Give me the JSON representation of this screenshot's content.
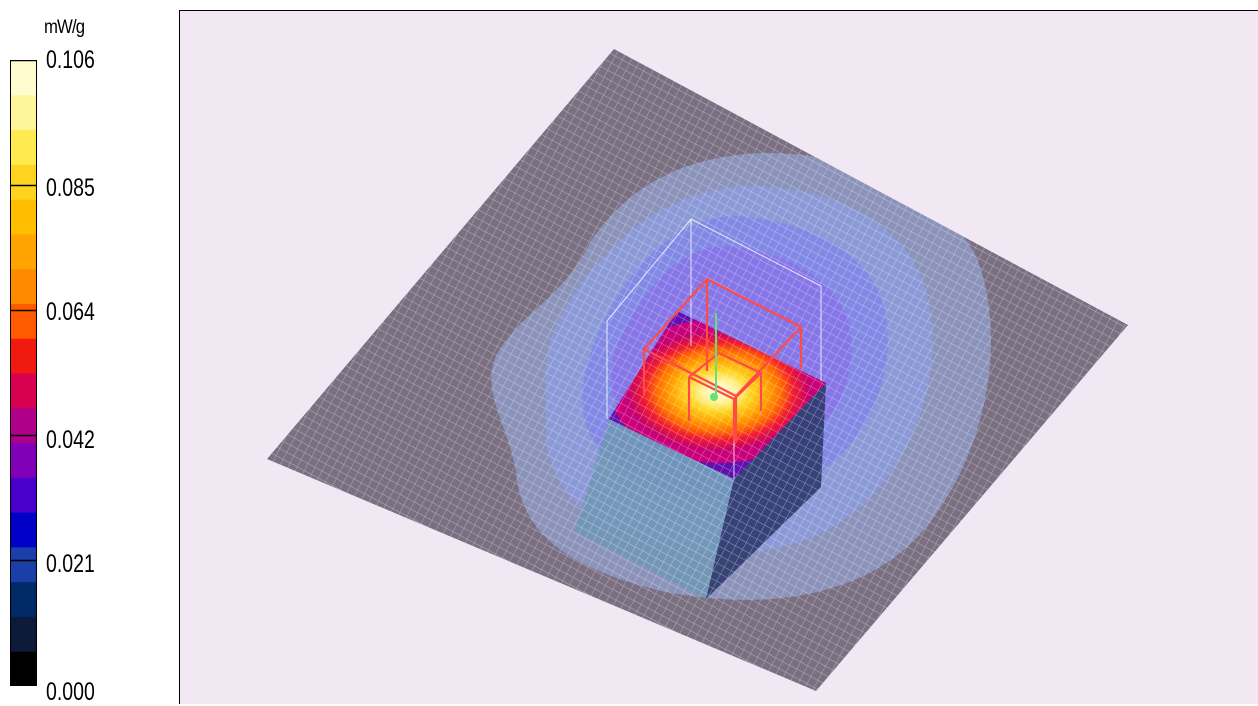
{
  "legend": {
    "unit": "mW/g",
    "ticks": [
      "0.106",
      "0.085",
      "0.064",
      "0.042",
      "0.021",
      "0.000"
    ],
    "min": 0.0,
    "max": 0.106,
    "bands": [
      "#000000",
      "#0d1a3a",
      "#002a66",
      "#1a3fa8",
      "#0000c8",
      "#4a00cc",
      "#8000b8",
      "#b0008a",
      "#d80050",
      "#f01a10",
      "#ff5a00",
      "#ff8a00",
      "#ffa400",
      "#ffbf00",
      "#ffd420",
      "#ffea50",
      "#fff59a",
      "#fffcd0"
    ]
  },
  "scene": {
    "background": "#f1e8f3",
    "ground_color": "#7a7081",
    "wire_color": "#ff4a4a",
    "box_color": "#7fa8c8"
  }
}
